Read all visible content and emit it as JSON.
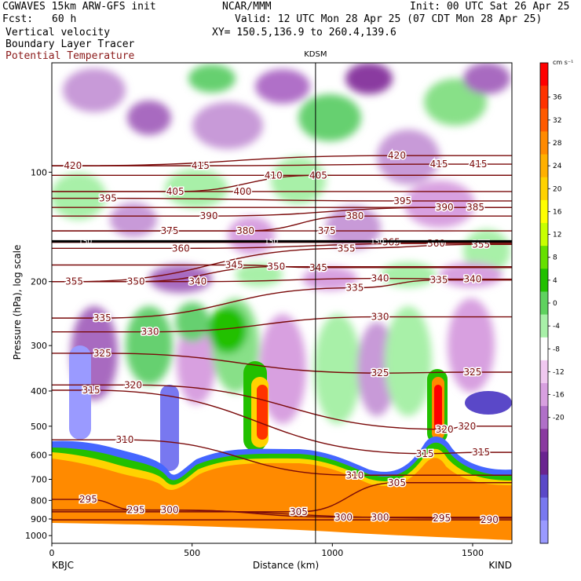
{
  "header": {
    "model": "CGWAVES 15km ARW-GFS init",
    "org": "NCAR/MMM",
    "init": "Init: 00 UTC Sat 26 Apr 25",
    "fcst_label": "Fcst:",
    "fcst_value": "60 h",
    "valid": "Valid: 12 UTC Mon 28 Apr 25 (07 CDT Mon 28 Apr 25)",
    "xy": "XY= 150.5,136.9 to 260.4,139.6",
    "field1": "Vertical velocity",
    "field2": "Boundary Layer Tracer",
    "field3": "Potential Temperature",
    "station_mid": "KDSM"
  },
  "colors": {
    "theta": "#7a0a0a",
    "frame": "#000000"
  },
  "chart_data": {
    "type": "heatmap",
    "xlabel": "Distance (km)",
    "ylabel": "Pressure (hPa), log scale",
    "x_ticks": [
      "0",
      "500",
      "1000",
      "1500"
    ],
    "x_tick_values": [
      0,
      500,
      1000,
      1500
    ],
    "xlim": [
      0,
      1640
    ],
    "y_ticks": [
      "100",
      "200",
      "300",
      "400",
      "500",
      "600",
      "700",
      "800",
      "900",
      "1000"
    ],
    "y_tick_values": [
      100,
      200,
      300,
      400,
      500,
      600,
      700,
      800,
      900,
      1000
    ],
    "left_station": "KBJC",
    "right_station": "KIND",
    "mid_station_km": 940,
    "colorbar": {
      "unit": "cm s⁻¹",
      "levels": [
        "36",
        "32",
        "28",
        "24",
        "20",
        "16",
        "12",
        "8",
        "4",
        "0",
        "-4",
        "-8",
        "-12",
        "-16",
        "-20"
      ],
      "colors": [
        "#ff0000",
        "#ff3300",
        "#ff5a00",
        "#ff8a00",
        "#ffb000",
        "#ffd200",
        "#ffff00",
        "#c8ff00",
        "#66e000",
        "#22c000",
        "#5fd25f",
        "#a8f0a8",
        "#ffffff",
        "#f0c8f0",
        "#d8a0e0",
        "#b070c8",
        "#8a3aa0",
        "#6a2490",
        "#5a48c8",
        "#7878f0",
        "#9a9aff"
      ]
    },
    "theta_labels": [
      {
        "v": "420",
        "km": 75,
        "p": 96
      },
      {
        "v": "415",
        "km": 530,
        "p": 96
      },
      {
        "v": "410",
        "km": 790,
        "p": 102
      },
      {
        "v": "405",
        "km": 950,
        "p": 102
      },
      {
        "v": "420",
        "km": 1230,
        "p": 90
      },
      {
        "v": "415",
        "km": 1380,
        "p": 95
      },
      {
        "v": "415",
        "km": 1520,
        "p": 95
      },
      {
        "v": "395",
        "km": 200,
        "p": 118
      },
      {
        "v": "405",
        "km": 440,
        "p": 113
      },
      {
        "v": "400",
        "km": 680,
        "p": 113
      },
      {
        "v": "390",
        "km": 560,
        "p": 132
      },
      {
        "v": "380",
        "km": 1080,
        "p": 132
      },
      {
        "v": "395",
        "km": 1250,
        "p": 120
      },
      {
        "v": "390",
        "km": 1400,
        "p": 125
      },
      {
        "v": "385",
        "km": 1510,
        "p": 125
      },
      {
        "v": "375",
        "km": 420,
        "p": 145
      },
      {
        "v": "380",
        "km": 690,
        "p": 145
      },
      {
        "v": "375",
        "km": 980,
        "p": 145
      },
      {
        "v": "360",
        "km": 460,
        "p": 162
      },
      {
        "v": "355",
        "km": 1050,
        "p": 162
      },
      {
        "v": "365",
        "km": 1210,
        "p": 156
      },
      {
        "v": "360",
        "km": 1370,
        "p": 157
      },
      {
        "v": "355",
        "km": 1530,
        "p": 158
      },
      {
        "v": "345",
        "km": 650,
        "p": 180
      },
      {
        "v": "350",
        "km": 800,
        "p": 182
      },
      {
        "v": "345",
        "km": 950,
        "p": 183
      },
      {
        "v": "355",
        "km": 80,
        "p": 200
      },
      {
        "v": "350",
        "km": 300,
        "p": 200
      },
      {
        "v": "340",
        "km": 520,
        "p": 200
      },
      {
        "v": "340",
        "km": 1170,
        "p": 196
      },
      {
        "v": "335",
        "km": 1380,
        "p": 198
      },
      {
        "v": "340",
        "km": 1500,
        "p": 197
      },
      {
        "v": "335",
        "km": 1080,
        "p": 208
      },
      {
        "v": "335",
        "km": 180,
        "p": 252
      },
      {
        "v": "330",
        "km": 350,
        "p": 275
      },
      {
        "v": "330",
        "km": 1170,
        "p": 250
      },
      {
        "v": "325",
        "km": 180,
        "p": 315
      },
      {
        "v": "325",
        "km": 1170,
        "p": 357
      },
      {
        "v": "325",
        "km": 1500,
        "p": 355
      },
      {
        "v": "320",
        "km": 290,
        "p": 385
      },
      {
        "v": "315",
        "km": 140,
        "p": 398
      },
      {
        "v": "320",
        "km": 1400,
        "p": 510
      },
      {
        "v": "320",
        "km": 1480,
        "p": 500
      },
      {
        "v": "310",
        "km": 260,
        "p": 545
      },
      {
        "v": "315",
        "km": 1330,
        "p": 595
      },
      {
        "v": "315",
        "km": 1530,
        "p": 590
      },
      {
        "v": "310",
        "km": 1080,
        "p": 682
      },
      {
        "v": "305",
        "km": 1230,
        "p": 715
      },
      {
        "v": "305",
        "km": 880,
        "p": 860
      },
      {
        "v": "300",
        "km": 420,
        "p": 850
      },
      {
        "v": "295",
        "km": 300,
        "p": 850
      },
      {
        "v": "295",
        "km": 130,
        "p": 795
      },
      {
        "v": "300",
        "km": 1040,
        "p": 890
      },
      {
        "v": "300",
        "km": 1170,
        "p": 890
      },
      {
        "v": "295",
        "km": 1390,
        "p": 895
      },
      {
        "v": "290",
        "km": 1560,
        "p": 905
      }
    ],
    "tracer_label": "150",
    "tropo_hpa": 155
  }
}
